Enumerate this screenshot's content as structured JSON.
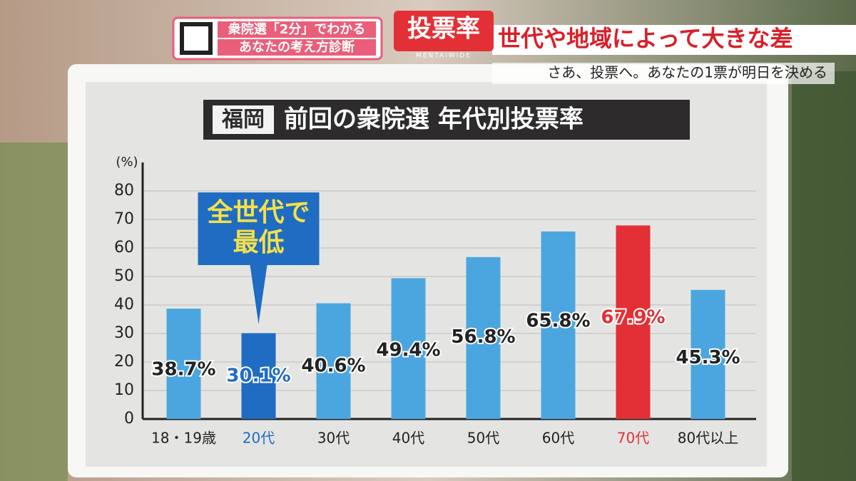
{
  "banner": {
    "program_line1": "衆院選「2分」でわかる",
    "program_line2": "あなたの考え方診断",
    "topic": "投票率",
    "show": "MENTAIWIDE",
    "headline": "世代や地域によって大きな差",
    "slogan": "さあ、投票へ。あなたの1票が明日を決める"
  },
  "chart_data": {
    "type": "bar",
    "title_tag": "福岡",
    "title": "前回の衆院選 年代別投票率",
    "y_label": "(%)",
    "categories": [
      "18・19歳",
      "20代",
      "30代",
      "40代",
      "50代",
      "60代",
      "70代",
      "80代以上"
    ],
    "values": [
      38.7,
      30.1,
      40.6,
      49.4,
      56.8,
      65.8,
      67.9,
      45.3
    ],
    "value_labels": [
      "38.7%",
      "30.1%",
      "40.6%",
      "49.4%",
      "56.8%",
      "65.8%",
      "67.9%",
      "45.3%"
    ],
    "colors": [
      "#4ba6e0",
      "#1f6cc2",
      "#4ba6e0",
      "#4ba6e0",
      "#4ba6e0",
      "#4ba6e0",
      "#e23036",
      "#4ba6e0"
    ],
    "label_colors": [
      "#222222",
      "#1f6cc2",
      "#222222",
      "#222222",
      "#222222",
      "#222222",
      "#e23036",
      "#222222"
    ],
    "ylim": [
      0,
      80
    ],
    "yticks": [
      0,
      10,
      20,
      30,
      40,
      50,
      60,
      70,
      80
    ],
    "grid": true,
    "annotation": {
      "lines": [
        "全世代で",
        "最低"
      ],
      "category_index": 1
    }
  }
}
